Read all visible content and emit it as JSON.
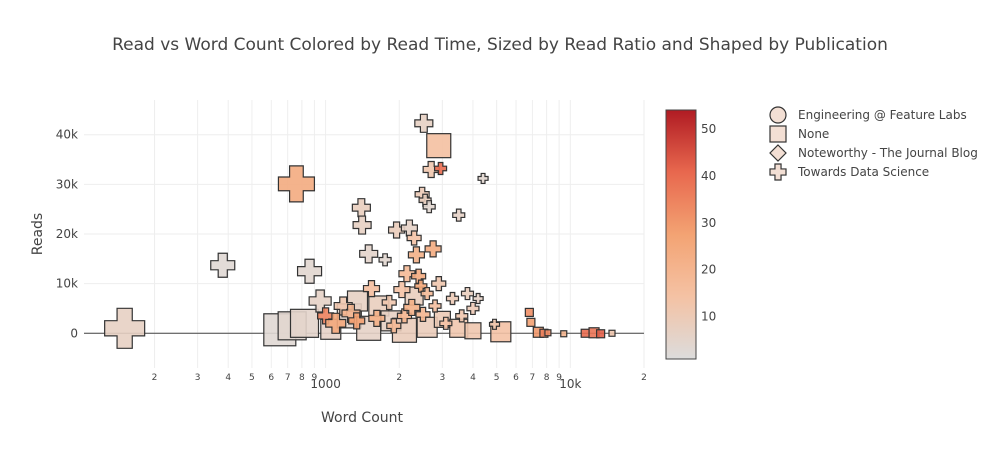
{
  "chart_data": {
    "type": "scatter",
    "title": "Read vs Word Count Colored by Read Time, Sized by Read Ratio and Shaped by Publication",
    "xlabel": "Word Count",
    "ylabel": "Reads",
    "x_scale": "log",
    "xlim": [
      103,
      20000
    ],
    "ylim": [
      -7000,
      47000
    ],
    "x_tick_labels": [
      {
        "v": 200,
        "t": "2"
      },
      {
        "v": 300,
        "t": "3"
      },
      {
        "v": 400,
        "t": "4"
      },
      {
        "v": 500,
        "t": "5"
      },
      {
        "v": 600,
        "t": "6"
      },
      {
        "v": 700,
        "t": "7"
      },
      {
        "v": 800,
        "t": "8"
      },
      {
        "v": 900,
        "t": "9"
      },
      {
        "v": 1000,
        "t": "1000"
      },
      {
        "v": 2000,
        "t": "2"
      },
      {
        "v": 3000,
        "t": "3"
      },
      {
        "v": 4000,
        "t": "4"
      },
      {
        "v": 5000,
        "t": "5"
      },
      {
        "v": 6000,
        "t": "6"
      },
      {
        "v": 7000,
        "t": "7"
      },
      {
        "v": 8000,
        "t": "8"
      },
      {
        "v": 9000,
        "t": "9"
      },
      {
        "v": 10000,
        "t": "10k"
      },
      {
        "v": 20000,
        "t": "2"
      }
    ],
    "y_ticks": [
      {
        "v": 0,
        "t": "0"
      },
      {
        "v": 10000,
        "t": "10k"
      },
      {
        "v": 20000,
        "t": "20k"
      },
      {
        "v": 30000,
        "t": "30k"
      },
      {
        "v": 40000,
        "t": "40k"
      }
    ],
    "colorbar": {
      "colors": [
        "#dcdcdc",
        "#f4c2a4",
        "#f3a373",
        "#e8684e",
        "#b01b23"
      ],
      "range": [
        1,
        54
      ],
      "ticks": [
        {
          "v": 10,
          "t": "10"
        },
        {
          "v": 20,
          "t": "20"
        },
        {
          "v": 30,
          "t": "30"
        },
        {
          "v": 40,
          "t": "40"
        },
        {
          "v": 50,
          "t": "50"
        }
      ]
    },
    "legend": {
      "placement": "top-right",
      "entries": [
        {
          "name": "Engineering @ Feature Labs",
          "shape": "circle"
        },
        {
          "name": "None",
          "shape": "square"
        },
        {
          "name": "Noteworthy - The Journal Blog",
          "shape": "diamond"
        },
        {
          "name": "Towards Data Science",
          "shape": "cross"
        }
      ]
    },
    "series": [
      {
        "name": "None",
        "shape": "square",
        "points": [
          [
            2900,
            37800,
            15,
            12
          ],
          [
            650,
            700,
            3,
            16
          ],
          [
            730,
            1500,
            4,
            14
          ],
          [
            820,
            2000,
            5,
            14
          ],
          [
            1050,
            800,
            6,
            10
          ],
          [
            1250,
            3500,
            5,
            12
          ],
          [
            1350,
            6500,
            7,
            10
          ],
          [
            1500,
            1000,
            6,
            12
          ],
          [
            1650,
            5500,
            8,
            10
          ],
          [
            1850,
            2500,
            7,
            10
          ],
          [
            2100,
            600,
            9,
            12
          ],
          [
            2300,
            7500,
            8,
            9
          ],
          [
            2600,
            1200,
            9,
            10
          ],
          [
            3000,
            2800,
            10,
            8
          ],
          [
            3500,
            1000,
            12,
            9
          ],
          [
            4000,
            500,
            12,
            8
          ],
          [
            5200,
            300,
            14,
            10
          ],
          [
            6800,
            4200,
            32,
            4
          ],
          [
            6900,
            2200,
            28,
            4
          ],
          [
            7400,
            200,
            30,
            5
          ],
          [
            7800,
            0,
            35,
            4
          ],
          [
            8100,
            100,
            33,
            3
          ],
          [
            9400,
            -100,
            20,
            3
          ],
          [
            11500,
            0,
            40,
            4
          ],
          [
            12500,
            100,
            38,
            5
          ],
          [
            13300,
            -100,
            42,
            4
          ],
          [
            14800,
            0,
            12,
            3
          ]
        ]
      },
      {
        "name": "Towards Data Science",
        "shape": "cross",
        "points": [
          [
            151,
            1000,
            7,
            20
          ],
          [
            380,
            13700,
            3,
            12
          ],
          [
            760,
            30100,
            24,
            18
          ],
          [
            860,
            12500,
            4,
            12
          ],
          [
            950,
            6500,
            6,
            11
          ],
          [
            1000,
            3500,
            35,
            8
          ],
          [
            1100,
            2000,
            25,
            10
          ],
          [
            1180,
            5500,
            12,
            9
          ],
          [
            1270,
            4000,
            20,
            9
          ],
          [
            1340,
            2500,
            28,
            8
          ],
          [
            1400,
            25300,
            8,
            9
          ],
          [
            1410,
            21800,
            7,
            9
          ],
          [
            1500,
            16000,
            5,
            9
          ],
          [
            1540,
            9000,
            16,
            8
          ],
          [
            1620,
            3000,
            22,
            8
          ],
          [
            1750,
            14800,
            4,
            6
          ],
          [
            1820,
            6200,
            12,
            7
          ],
          [
            1900,
            1500,
            18,
            7
          ],
          [
            1950,
            20800,
            9,
            8
          ],
          [
            2050,
            8800,
            14,
            8
          ],
          [
            2100,
            3500,
            20,
            7
          ],
          [
            2150,
            12000,
            18,
            8
          ],
          [
            2200,
            21200,
            6,
            8
          ],
          [
            2250,
            5200,
            22,
            8
          ],
          [
            2300,
            19200,
            14,
            7
          ],
          [
            2350,
            15800,
            22,
            8
          ],
          [
            2400,
            11500,
            24,
            7
          ],
          [
            2450,
            9500,
            26,
            6
          ],
          [
            2480,
            28000,
            10,
            7
          ],
          [
            2500,
            3800,
            20,
            7
          ],
          [
            2520,
            42300,
            7,
            9
          ],
          [
            2550,
            26800,
            8,
            6
          ],
          [
            2600,
            8000,
            18,
            6
          ],
          [
            2650,
            25500,
            4,
            6
          ],
          [
            2700,
            33000,
            12,
            8
          ],
          [
            2750,
            17000,
            24,
            8
          ],
          [
            2800,
            5500,
            16,
            6
          ],
          [
            2900,
            10000,
            12,
            7
          ],
          [
            2950,
            33200,
            40,
            6
          ],
          [
            3100,
            2000,
            14,
            6
          ],
          [
            3300,
            7000,
            10,
            6
          ],
          [
            3500,
            23800,
            6,
            6
          ],
          [
            3600,
            3500,
            12,
            6
          ],
          [
            3800,
            8000,
            8,
            6
          ],
          [
            4000,
            5000,
            10,
            6
          ],
          [
            4200,
            7000,
            6,
            5
          ],
          [
            4400,
            31200,
            4,
            5
          ],
          [
            4900,
            1800,
            12,
            5
          ]
        ]
      }
    ]
  }
}
